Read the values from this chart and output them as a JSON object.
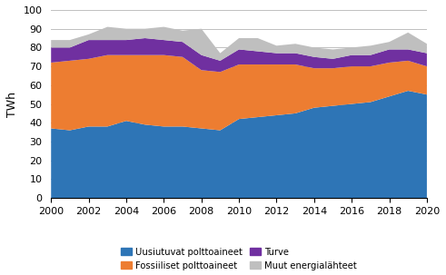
{
  "years": [
    2000,
    2001,
    2002,
    2003,
    2004,
    2005,
    2006,
    2007,
    2008,
    2009,
    2010,
    2011,
    2012,
    2013,
    2014,
    2015,
    2016,
    2017,
    2018,
    2019,
    2020
  ],
  "uusiutuvat": [
    37,
    36,
    38,
    38,
    41,
    39,
    38,
    38,
    37,
    36,
    42,
    43,
    44,
    45,
    48,
    49,
    50,
    51,
    54,
    57,
    55
  ],
  "fossiiliset": [
    35,
    37,
    36,
    38,
    35,
    37,
    38,
    37,
    31,
    31,
    29,
    28,
    27,
    26,
    21,
    20,
    20,
    19,
    18,
    16,
    15
  ],
  "turve": [
    8,
    7,
    10,
    8,
    8,
    9,
    8,
    8,
    8,
    6,
    8,
    7,
    6,
    6,
    6,
    5,
    6,
    6,
    7,
    6,
    7
  ],
  "muut": [
    4,
    4,
    3,
    7,
    6,
    5,
    7,
    6,
    14,
    4,
    6,
    7,
    4,
    5,
    5,
    5,
    4,
    5,
    4,
    9,
    5
  ],
  "colors": {
    "uusiutuvat": "#2E75B6",
    "fossiiliset": "#ED7D31",
    "turve": "#7030A0",
    "muut": "#BFBFBF"
  },
  "ylabel": "TWh",
  "ylim": [
    0,
    100
  ],
  "yticks": [
    0,
    10,
    20,
    30,
    40,
    50,
    60,
    70,
    80,
    90,
    100
  ],
  "xticks": [
    2000,
    2002,
    2004,
    2006,
    2008,
    2010,
    2012,
    2014,
    2016,
    2018,
    2020
  ],
  "legend_labels": [
    "Uusiutuvat polttoaineet",
    "Fossiiliset polttoaineet",
    "Turve",
    "Muut energialähteet"
  ],
  "grid_color": "#C0C0C0",
  "grid_linewidth": 0.7
}
